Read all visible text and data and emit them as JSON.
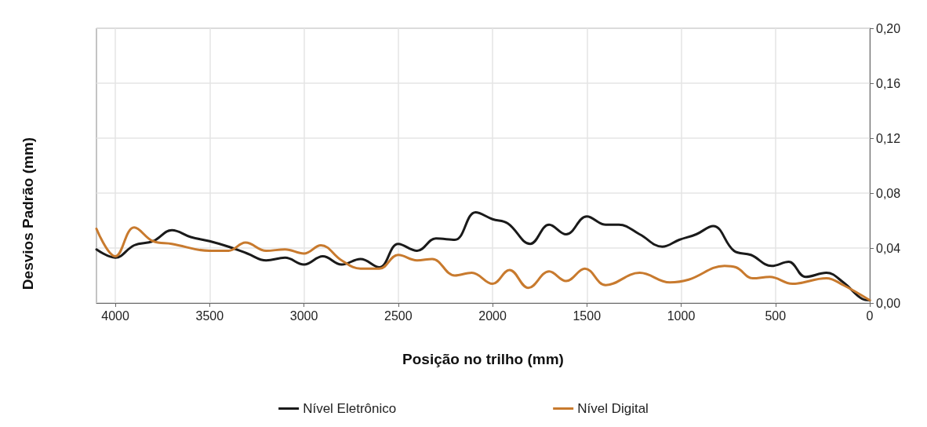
{
  "chart_data": {
    "type": "line",
    "xlabel": "Posição no trilho (mm)",
    "ylabel": "Desvios Padrão (mm)",
    "xlim": [
      4100,
      0
    ],
    "xticks": [
      4000,
      3500,
      3000,
      2500,
      2000,
      1500,
      1000,
      500,
      0
    ],
    "ylim": [
      0,
      0.2
    ],
    "yticks": [
      {
        "value": 0,
        "label": "0,00"
      },
      {
        "value": 0.04,
        "label": "0,04"
      },
      {
        "value": 0.08,
        "label": "0,08"
      },
      {
        "value": 0.12,
        "label": "0,12"
      },
      {
        "value": 0.16,
        "label": "0,16"
      },
      {
        "value": 0.2,
        "label": "0,20"
      }
    ],
    "grid": true,
    "legend": "bottom",
    "marker": "none",
    "line_style": "solid",
    "series": [
      {
        "name": "Nível Eletrônico",
        "color": "#1a1a1a",
        "x": [
          4100,
          4000,
          3900,
          3800,
          3700,
          3600,
          3500,
          3400,
          3300,
          3200,
          3100,
          3000,
          2900,
          2800,
          2700,
          2600,
          2500,
          2400,
          2300,
          2200,
          2090,
          2000,
          1920,
          1800,
          1700,
          1610,
          1500,
          1400,
          1330,
          1220,
          1100,
          1010,
          920,
          830,
          720,
          630,
          520,
          430,
          340,
          230,
          140,
          40,
          0
        ],
        "values": [
          0.039,
          0.033,
          0.042,
          0.045,
          0.053,
          0.048,
          0.045,
          0.041,
          0.036,
          0.031,
          0.033,
          0.028,
          0.034,
          0.028,
          0.032,
          0.026,
          0.043,
          0.038,
          0.047,
          0.046,
          0.066,
          0.061,
          0.058,
          0.043,
          0.057,
          0.05,
          0.063,
          0.057,
          0.057,
          0.05,
          0.041,
          0.046,
          0.05,
          0.056,
          0.038,
          0.035,
          0.027,
          0.03,
          0.019,
          0.022,
          0.015,
          0.003,
          0.002
        ]
      },
      {
        "name": "Nível Digital",
        "color": "#c87a2e",
        "x": [
          4100,
          4000,
          3900,
          3800,
          3700,
          3500,
          3400,
          3310,
          3200,
          3100,
          3000,
          2910,
          2800,
          2700,
          2600,
          2500,
          2400,
          2320,
          2200,
          2110,
          2000,
          1910,
          1810,
          1700,
          1610,
          1510,
          1400,
          1220,
          1060,
          960,
          770,
          710,
          620,
          530,
          410,
          230,
          140,
          0
        ],
        "values": [
          0.054,
          0.034,
          0.055,
          0.045,
          0.043,
          0.038,
          0.038,
          0.044,
          0.038,
          0.039,
          0.036,
          0.042,
          0.031,
          0.025,
          0.025,
          0.035,
          0.031,
          0.032,
          0.02,
          0.022,
          0.014,
          0.024,
          0.011,
          0.023,
          0.016,
          0.025,
          0.013,
          0.022,
          0.015,
          0.017,
          0.027,
          0.026,
          0.018,
          0.019,
          0.014,
          0.018,
          0.013,
          0.002
        ]
      }
    ]
  }
}
